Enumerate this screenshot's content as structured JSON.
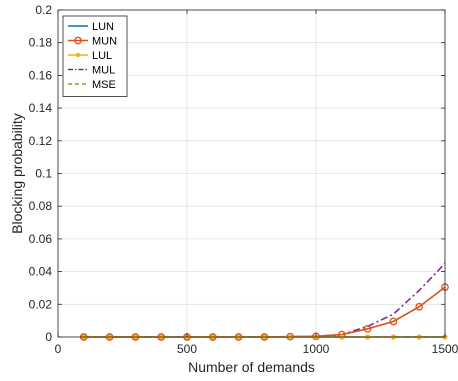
{
  "chart_data": {
    "type": "line",
    "title": "",
    "xlabel": "Number of demands",
    "ylabel": "Blocking probability",
    "xlim": [
      0,
      1500
    ],
    "ylim": [
      0,
      0.2
    ],
    "xticks": [
      0,
      500,
      1000,
      1500
    ],
    "yticks": [
      0,
      0.02,
      0.04,
      0.06,
      0.08,
      0.1,
      0.12,
      0.14,
      0.16,
      0.18,
      0.2
    ],
    "grid": true,
    "legend_position": "top-left",
    "x": [
      100,
      200,
      300,
      400,
      500,
      600,
      700,
      800,
      900,
      1000,
      1100,
      1200,
      1300,
      1400,
      1500
    ],
    "series": [
      {
        "name": "LUN",
        "color": "#0072BD",
        "style": "solid",
        "marker": "none",
        "values": [
          0,
          0,
          0,
          0,
          0,
          0,
          0,
          0,
          0,
          0,
          0,
          0,
          0,
          0,
          0
        ]
      },
      {
        "name": "MUN",
        "color": "#D95319",
        "style": "solid",
        "marker": "circle",
        "values": [
          0,
          0,
          0,
          0,
          0,
          0,
          0,
          0,
          0.0002,
          0.0004,
          0.0015,
          0.005,
          0.0095,
          0.0185,
          0.0305
        ]
      },
      {
        "name": "LUL",
        "color": "#EDB120",
        "style": "solid",
        "marker": "dot",
        "values": [
          0,
          0,
          0,
          0,
          0,
          0,
          0,
          0,
          0,
          0,
          0,
          0,
          0,
          0,
          0
        ]
      },
      {
        "name": "MUL",
        "color": "#7E2F8E",
        "style": "dashdot",
        "marker": "none",
        "values": [
          0,
          0,
          0,
          0,
          0,
          0,
          0,
          0,
          0.0002,
          0.0004,
          0.0015,
          0.0065,
          0.014,
          0.0285,
          0.045
        ]
      },
      {
        "name": "MSE",
        "color": "#77AC30",
        "style": "dashed",
        "marker": "none",
        "values": [
          0,
          0,
          0,
          0,
          0,
          0,
          0,
          0,
          0,
          0,
          0,
          0,
          0,
          0,
          0
        ]
      }
    ]
  }
}
